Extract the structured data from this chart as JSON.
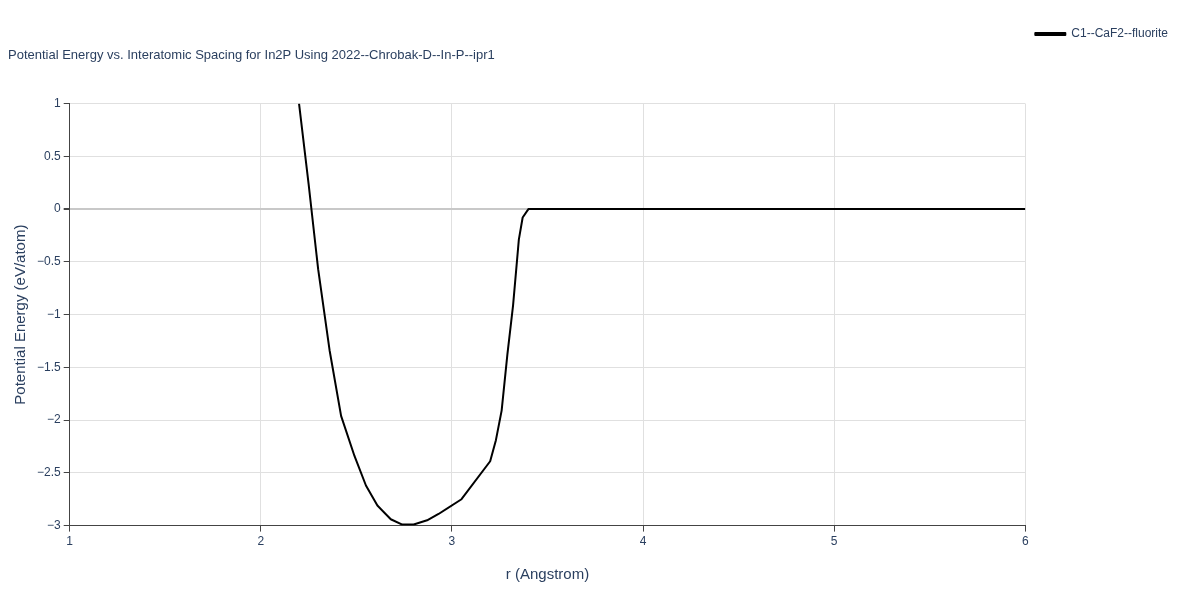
{
  "chart_data": {
    "type": "line",
    "title": "Potential Energy vs. Interatomic Spacing for In2P Using 2022--Chrobak-D--In-P--ipr1",
    "xlabel": "r (Angstrom)",
    "ylabel": "Potential Energy (eV/atom)",
    "xlim": [
      1,
      6
    ],
    "xticks": [
      1,
      2,
      3,
      4,
      5,
      6
    ],
    "ylim": [
      -3,
      1
    ],
    "yticks": [
      -3,
      -2.5,
      -2,
      -1.5,
      -1,
      -0.5,
      0,
      0.5,
      1
    ],
    "grid": true,
    "legend": "top right",
    "series": [
      {
        "name": "C1--CaF2--fluorite",
        "color": "#000000",
        "x": [
          2.2,
          2.25,
          2.3,
          2.36,
          2.42,
          2.49,
          2.55,
          2.61,
          2.68,
          2.74,
          2.8,
          2.87,
          2.93,
          3.05,
          3.2,
          3.23,
          3.26,
          3.29,
          3.32,
          3.35,
          3.37,
          3.4,
          6
        ],
        "values": [
          1,
          0.24,
          -0.57,
          -1.34,
          -1.96,
          -2.34,
          -2.62,
          -2.81,
          -2.94,
          -2.99,
          -2.99,
          -2.95,
          -2.89,
          -2.75,
          -2.39,
          -2.19,
          -1.91,
          -1.38,
          -0.91,
          -0.29,
          -0.08,
          0,
          0
        ]
      }
    ]
  }
}
